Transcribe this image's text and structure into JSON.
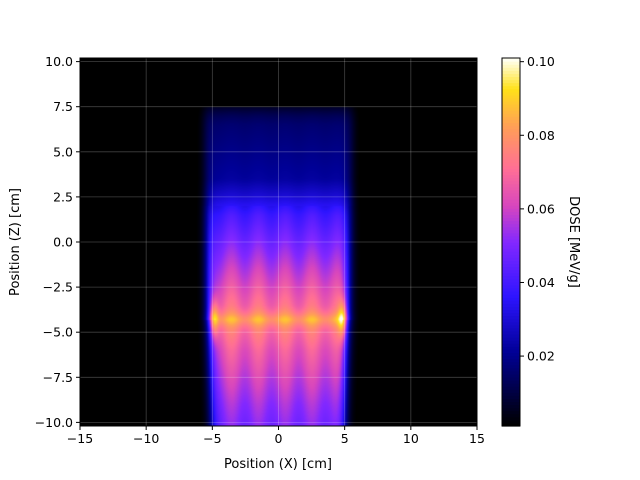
{
  "chart_data": {
    "type": "heatmap",
    "title": "",
    "xlabel": "Position (X) [cm]",
    "ylabel": "Position (Z) [cm]",
    "colorbar_label": "DOSE [MeV/g]",
    "colormap": "gnuplot2",
    "xlim": [
      -15,
      15
    ],
    "ylim": [
      -10.2,
      10.2
    ],
    "x_ticks": [
      "−15",
      "−10",
      "−5",
      "0",
      "5",
      "10",
      "15"
    ],
    "y_ticks": [
      "−10.0",
      "−7.5",
      "−5.0",
      "−2.5",
      "0.0",
      "2.5",
      "5.0",
      "7.5",
      "10.0"
    ],
    "colorbar_range": [
      0.001,
      0.101
    ],
    "colorbar_ticks": [
      "0.02",
      "0.04",
      "0.06",
      "0.08",
      "0.10"
    ],
    "grid": true,
    "field": {
      "x_range": [
        -5.2,
        5.2
      ],
      "z_range": [
        -10.2,
        7.5
      ],
      "peak_depth_z": -4.3,
      "edge_hotspots_x": [
        -5,
        5
      ]
    },
    "depth_profile": {
      "z": [
        7.5,
        6.5,
        5.5,
        4.5,
        3.5,
        2.5,
        1.5,
        0.5,
        -0.5,
        -1.5,
        -2.5,
        -3.5,
        -4.3,
        -5.0,
        -6.0,
        -7.0,
        -8.0,
        -9.0,
        -10.2
      ],
      "dose": [
        0.012,
        0.016,
        0.018,
        0.02,
        0.022,
        0.03,
        0.04,
        0.046,
        0.052,
        0.058,
        0.064,
        0.07,
        0.078,
        0.072,
        0.066,
        0.062,
        0.058,
        0.054,
        0.05
      ]
    }
  }
}
